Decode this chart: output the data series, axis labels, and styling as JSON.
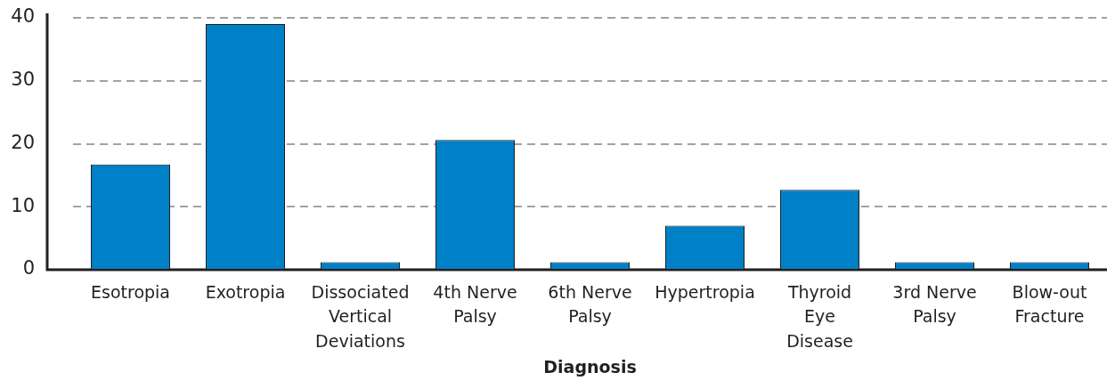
{
  "chart_data": {
    "type": "bar",
    "xlabel": "Diagnosis",
    "categories": [
      "Esotropia",
      "Exotropia",
      "Dissociated Vertical Deviations",
      "4th Nerve Palsy",
      "6th Nerve Palsy",
      "Hypertropia",
      "Thyroid Eye Disease",
      "3rd Nerve Palsy",
      "Blow-out Fracture"
    ],
    "values": [
      16.7,
      39,
      1.2,
      20.6,
      1.2,
      7,
      12.7,
      1.2,
      1.2
    ],
    "color": "#0080c6",
    "ylim": [
      0,
      40
    ],
    "yticks": [
      0,
      10,
      20,
      30,
      40
    ],
    "grid": "y"
  }
}
